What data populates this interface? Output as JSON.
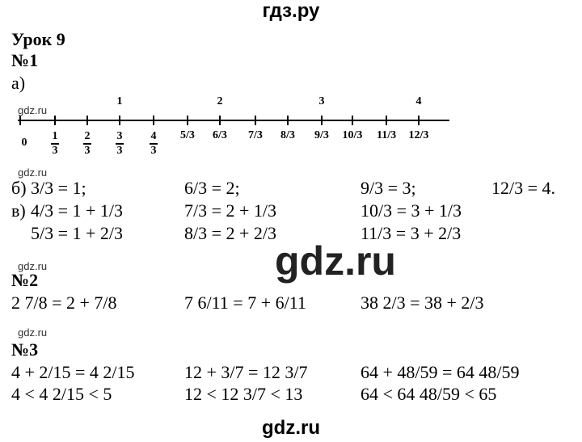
{
  "header": "гдз.ру",
  "lesson": "Урок 9",
  "watermarks": [
    "gdz.ru",
    "gdz.ru",
    "gdz.ru",
    "gdz.ru"
  ],
  "big_watermark": "gdz.ru",
  "footer": "gdz.ru",
  "task1": {
    "title": "№1",
    "part_a": {
      "label": "а)",
      "number_line": {
        "top_labels": [
          "1",
          "2",
          "3",
          "4"
        ],
        "zero": "0",
        "stacked": [
          [
            "1",
            "3"
          ],
          [
            "2",
            "3"
          ],
          [
            "3",
            "3"
          ],
          [
            "4",
            "3"
          ]
        ],
        "inline": [
          "5/3",
          "6/3",
          "7/3",
          "8/3",
          "9/3",
          "10/3",
          "11/3",
          "12/3"
        ]
      }
    },
    "part_b": {
      "label": "б)",
      "items": [
        "3/3 = 1;",
        "6/3 = 2;",
        "9/3 = 3;",
        "12/3 = 4."
      ]
    },
    "part_v": {
      "label": "в)",
      "rows": [
        [
          "4/3 = 1 + 1/3",
          "7/3 = 2 + 1/3",
          "10/3 = 3 + 1/3"
        ],
        [
          "5/3 = 1 + 2/3",
          "8/3 = 2 + 2/3",
          "11/3 = 3 + 2/3"
        ]
      ]
    }
  },
  "task2": {
    "title": "№2",
    "items": [
      "2 7/8 = 2 + 7/8",
      "7 6/11 = 7 + 6/11",
      "38 2/3 = 38 + 2/3"
    ]
  },
  "task3": {
    "title": "№3",
    "rows": [
      [
        "4 + 2/15 = 4 2/15",
        "12 + 3/7 = 12 3/7",
        "64 + 48/59 = 64 48/59"
      ],
      [
        "4 < 4 2/15 < 5",
        "12 < 12 3/7 < 13",
        "64 < 64 48/59 < 65"
      ]
    ]
  }
}
